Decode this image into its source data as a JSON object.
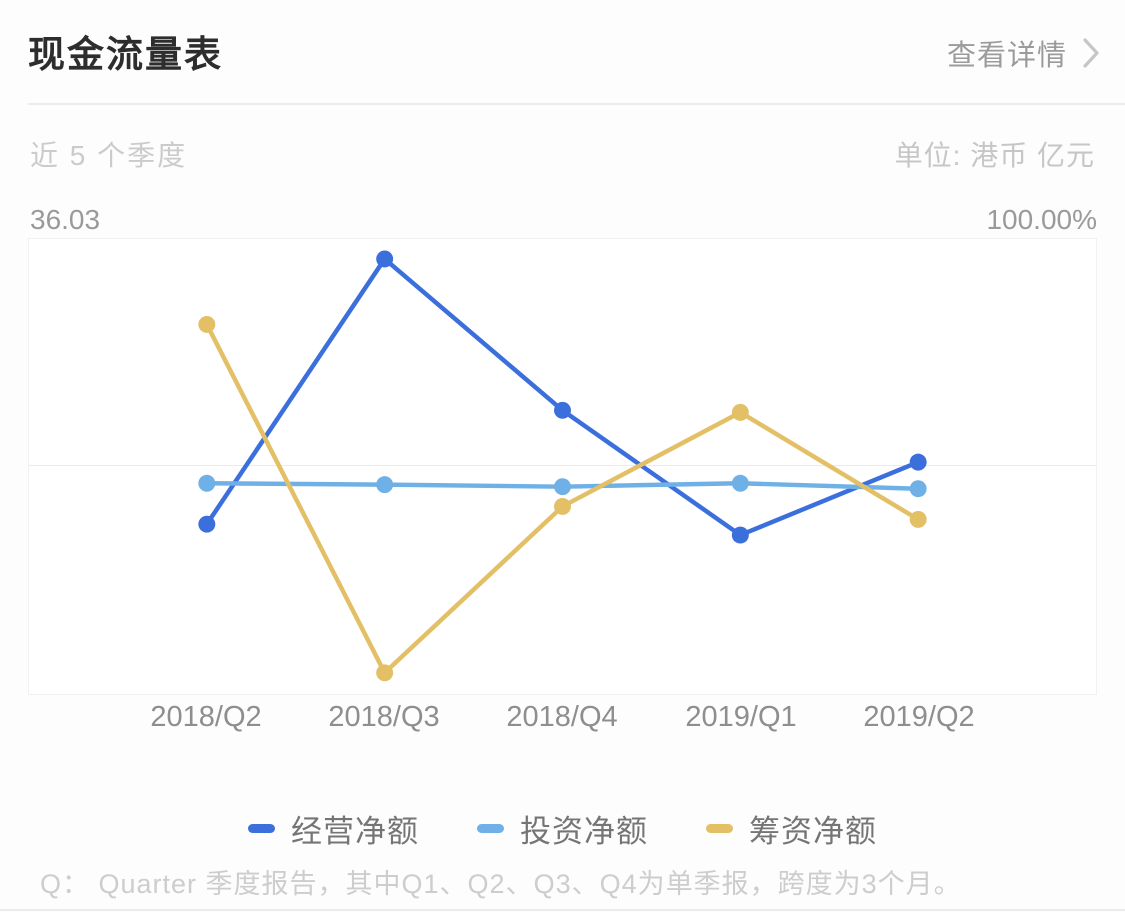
{
  "header": {
    "title": "现金流量表",
    "details_label": "查看详情"
  },
  "subheader": {
    "period": "近 5 个季度",
    "unit": "单位: 港币 亿元"
  },
  "chart_data": {
    "type": "line",
    "title": "现金流量表",
    "categories": [
      "2018/Q2",
      "2018/Q3",
      "2018/Q4",
      "2019/Q1",
      "2019/Q2"
    ],
    "series": [
      {
        "name": "经营净额",
        "color": "#3b6fdc",
        "values": [
          -5.8,
          33.1,
          10.9,
          -7.4,
          3.3
        ]
      },
      {
        "name": "投资净额",
        "color": "#6fb1e7",
        "values": [
          0.2,
          0.0,
          -0.3,
          0.2,
          -0.6
        ]
      },
      {
        "name": "筹资净额",
        "color": "#e3bf66",
        "values": [
          23.5,
          -27.6,
          -3.2,
          10.6,
          -5.1
        ]
      }
    ],
    "left_axis": {
      "ticks": [
        "36.03",
        "2.66",
        "-30.71"
      ],
      "max": 36.03,
      "mid": 2.66,
      "min": -30.71
    },
    "right_axis": {
      "ticks": [
        "100.00%",
        "50.00%",
        "0.00%"
      ]
    },
    "ylim": [
      -30.71,
      36.03
    ],
    "grid": "3 horizontal lines (top, middle, bottom)",
    "legend_position": "bottom",
    "marker": "filled circle on each point"
  },
  "footnote": "Q： Quarter 季度报告，其中Q1、Q2、Q3、Q4为单季报，跨度为3个月。"
}
